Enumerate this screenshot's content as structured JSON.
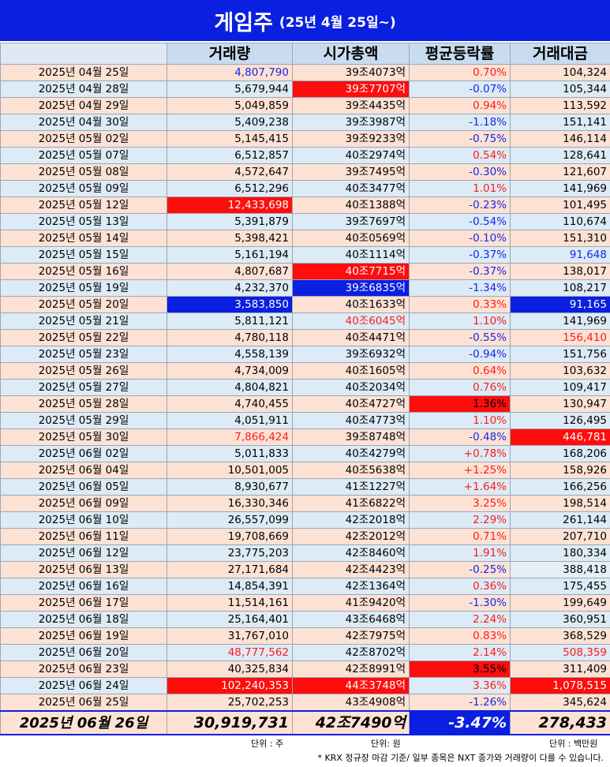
{
  "title": {
    "main": "게임주",
    "sub": "(25년 4월 25일~)"
  },
  "colors": {
    "red_text": "#ff1a1a",
    "blue_text": "#1428e6",
    "white_text": "#ffffff",
    "black_text": "#000000",
    "highlight_red": "#ff0d0d",
    "highlight_blue": "#0a1fe0"
  },
  "columns": [
    "",
    "거래량",
    "시가총액",
    "평균등락률",
    "거래대금"
  ],
  "rows": [
    {
      "date": "2025년 04월 25일",
      "volume": "4,807,790",
      "cap": "39조4073억",
      "change": "0.70%",
      "value": "104,324",
      "vc": "b",
      "cc": "",
      "chc": "r",
      "vlc": ""
    },
    {
      "date": "2025년 04월 28일",
      "volume": "5,679,944",
      "cap": "39조7707억",
      "change": "-0.07%",
      "value": "105,344",
      "vc": "",
      "cc": "Rw",
      "chc": "b",
      "vlc": ""
    },
    {
      "date": "2025년 04월 29일",
      "volume": "5,049,859",
      "cap": "39조4435억",
      "change": "0.94%",
      "value": "113,592",
      "vc": "",
      "cc": "",
      "chc": "r",
      "vlc": ""
    },
    {
      "date": "2025년 04월 30일",
      "volume": "5,409,238",
      "cap": "39조3987억",
      "change": "-1.18%",
      "value": "151,141",
      "vc": "",
      "cc": "",
      "chc": "b",
      "vlc": ""
    },
    {
      "date": "2025년 05월 02일",
      "volume": "5,145,415",
      "cap": "39조9233억",
      "change": "-0.75%",
      "value": "146,114",
      "vc": "",
      "cc": "",
      "chc": "b",
      "vlc": ""
    },
    {
      "date": "2025년 05월 07일",
      "volume": "6,512,857",
      "cap": "40조2974억",
      "change": "0.54%",
      "value": "128,641",
      "vc": "",
      "cc": "",
      "chc": "r",
      "vlc": ""
    },
    {
      "date": "2025년 05월 08일",
      "volume": "4,572,647",
      "cap": "39조7495억",
      "change": "-0.30%",
      "value": "121,607",
      "vc": "",
      "cc": "",
      "chc": "b",
      "vlc": ""
    },
    {
      "date": "2025년 05월 09일",
      "volume": "6,512,296",
      "cap": "40조3477억",
      "change": "1.01%",
      "value": "141,969",
      "vc": "",
      "cc": "",
      "chc": "r",
      "vlc": ""
    },
    {
      "date": "2025년 05월 12일",
      "volume": "12,433,698",
      "cap": "40조1388억",
      "change": "-0.23%",
      "value": "101,495",
      "vc": "Rw",
      "cc": "",
      "chc": "b",
      "vlc": ""
    },
    {
      "date": "2025년 05월 13일",
      "volume": "5,391,879",
      "cap": "39조7697억",
      "change": "-0.54%",
      "value": "110,674",
      "vc": "",
      "cc": "",
      "chc": "b",
      "vlc": ""
    },
    {
      "date": "2025년 05월 14일",
      "volume": "5,398,421",
      "cap": "40조0569억",
      "change": "-0.10%",
      "value": "151,310",
      "vc": "",
      "cc": "",
      "chc": "b",
      "vlc": ""
    },
    {
      "date": "2025년 05월 15일",
      "volume": "5,161,194",
      "cap": "40조1114억",
      "change": "-0.37%",
      "value": "91,648",
      "vc": "",
      "cc": "",
      "chc": "b",
      "vlc": "b"
    },
    {
      "date": "2025년 05월 16일",
      "volume": "4,807,687",
      "cap": "40조7715억",
      "change": "-0.37%",
      "value": "138,017",
      "vc": "",
      "cc": "Rw",
      "chc": "b",
      "vlc": ""
    },
    {
      "date": "2025년 05월 19일",
      "volume": "4,232,370",
      "cap": "39조6835억",
      "change": "-1.34%",
      "value": "108,217",
      "vc": "",
      "cc": "Bw",
      "chc": "b",
      "vlc": ""
    },
    {
      "date": "2025년 05월 20일",
      "volume": "3,583,850",
      "cap": "40조1633억",
      "change": "0.33%",
      "value": "91,165",
      "vc": "Bw",
      "cc": "",
      "chc": "r",
      "vlc": "Bw"
    },
    {
      "date": "2025년 05월 21일",
      "volume": "5,811,121",
      "cap": "40조6045억",
      "change": "1.10%",
      "value": "141,969",
      "vc": "",
      "cc": "r",
      "chc": "r",
      "vlc": ""
    },
    {
      "date": "2025년 05월 22일",
      "volume": "4,780,118",
      "cap": "40조4471억",
      "change": "-0.55%",
      "value": "156,410",
      "vc": "",
      "cc": "",
      "chc": "b",
      "vlc": "r"
    },
    {
      "date": "2025년 05월 23일",
      "volume": "4,558,139",
      "cap": "39조6932억",
      "change": "-0.94%",
      "value": "151,756",
      "vc": "",
      "cc": "",
      "chc": "b",
      "vlc": ""
    },
    {
      "date": "2025년 05월 26일",
      "volume": "4,734,009",
      "cap": "40조1605억",
      "change": "0.64%",
      "value": "103,632",
      "vc": "",
      "cc": "",
      "chc": "r",
      "vlc": ""
    },
    {
      "date": "2025년 05월 27일",
      "volume": "4,804,821",
      "cap": "40조2034억",
      "change": "0.76%",
      "value": "109,417",
      "vc": "",
      "cc": "",
      "chc": "r",
      "vlc": ""
    },
    {
      "date": "2025년 05월 28일",
      "volume": "4,740,455",
      "cap": "40조4727억",
      "change": "1.36%",
      "value": "130,947",
      "vc": "",
      "cc": "",
      "chc": "Rk",
      "vlc": ""
    },
    {
      "date": "2025년 05월 29일",
      "volume": "4,051,911",
      "cap": "40조4773억",
      "change": "1.10%",
      "value": "126,495",
      "vc": "",
      "cc": "",
      "chc": "r",
      "vlc": ""
    },
    {
      "date": "2025년 05월 30일",
      "volume": "7,866,424",
      "cap": "39조8748억",
      "change": "-0.48%",
      "value": "446,781",
      "vc": "r",
      "cc": "",
      "chc": "b",
      "vlc": "Rw"
    },
    {
      "date": "2025년 06월 02일",
      "volume": "5,011,833",
      "cap": "40조4279억",
      "change": "+0.78%",
      "value": "168,206",
      "vc": "",
      "cc": "",
      "chc": "r",
      "vlc": ""
    },
    {
      "date": "2025년 06월 04일",
      "volume": "10,501,005",
      "cap": "40조5638억",
      "change": "+1.25%",
      "value": "158,926",
      "vc": "",
      "cc": "",
      "chc": "r",
      "vlc": ""
    },
    {
      "date": "2025년 06월 05일",
      "volume": "8,930,677",
      "cap": "41조1227억",
      "change": "+1.64%",
      "value": "166,256",
      "vc": "",
      "cc": "",
      "chc": "r",
      "vlc": ""
    },
    {
      "date": "2025년 06월 09일",
      "volume": "16,330,346",
      "cap": "41조6822억",
      "change": "3.25%",
      "value": "198,514",
      "vc": "",
      "cc": "",
      "chc": "r",
      "vlc": ""
    },
    {
      "date": "2025년 06월 10일",
      "volume": "26,557,099",
      "cap": "42조2018억",
      "change": "2.29%",
      "value": "261,144",
      "vc": "",
      "cc": "",
      "chc": "r",
      "vlc": ""
    },
    {
      "date": "2025년 06월 11일",
      "volume": "19,708,669",
      "cap": "42조2012억",
      "change": "0.71%",
      "value": "207,710",
      "vc": "",
      "cc": "",
      "chc": "r",
      "vlc": ""
    },
    {
      "date": "2025년 06월 12일",
      "volume": "23,775,203",
      "cap": "42조8460억",
      "change": "1.91%",
      "value": "180,334",
      "vc": "",
      "cc": "",
      "chc": "r",
      "vlc": ""
    },
    {
      "date": "2025년 06월 13일",
      "volume": "27,171,684",
      "cap": "42조4423억",
      "change": "-0.25%",
      "value": "388,418",
      "vc": "",
      "cc": "",
      "chc": "b",
      "vlc": "P"
    },
    {
      "date": "2025년 06월 16일",
      "volume": "14,854,391",
      "cap": "42조1364억",
      "change": "0.36%",
      "value": "175,455",
      "vc": "",
      "cc": "",
      "chc": "r",
      "vlc": ""
    },
    {
      "date": "2025년 06월 17일",
      "volume": "11,514,161",
      "cap": "41조9420억",
      "change": "-1.30%",
      "value": "199,649",
      "vc": "",
      "cc": "",
      "chc": "b",
      "vlc": ""
    },
    {
      "date": "2025년 06월 18일",
      "volume": "25,164,401",
      "cap": "43조6468억",
      "change": "2.24%",
      "value": "360,951",
      "vc": "",
      "cc": "",
      "chc": "r",
      "vlc": ""
    },
    {
      "date": "2025년 06월 19일",
      "volume": "31,767,010",
      "cap": "42조7975억",
      "change": "0.83%",
      "value": "368,529",
      "vc": "",
      "cc": "",
      "chc": "r",
      "vlc": ""
    },
    {
      "date": "2025년 06월 20일",
      "volume": "48,777,562",
      "cap": "42조8702억",
      "change": "2.14%",
      "value": "508,359",
      "vc": "r",
      "cc": "",
      "chc": "r",
      "vlc": "r"
    },
    {
      "date": "2025년 06월 23일",
      "volume": "40,325,834",
      "cap": "42조8991억",
      "change": "3.55%",
      "value": "311,409",
      "vc": "",
      "cc": "",
      "chc": "Rk",
      "vlc": ""
    },
    {
      "date": "2025년 06월 24일",
      "volume": "102,240,353",
      "cap": "44조3748억",
      "change": "3.36%",
      "value": "1,078,515",
      "vc": "Rw",
      "cc": "Rw",
      "chc": "r",
      "vlc": "Rw"
    },
    {
      "date": "2025년 06월 25일",
      "volume": "25,702,253",
      "cap": "43조4908억",
      "change": "-1.26%",
      "value": "345,624",
      "vc": "",
      "cc": "",
      "chc": "b",
      "vlc": ""
    }
  ],
  "summary": {
    "date": "2025년 06월 26일",
    "volume": "30,919,731",
    "cap": "42조7490억",
    "change": "-3.47%",
    "value": "278,433"
  },
  "units": {
    "volume": "단위 : 주",
    "cap": "단위: 원",
    "value": "단위 : 백만원"
  },
  "footnote": "* KRX 정규장 마감 기준/ 일부 종목은 NXT 종가와 거래량이 다를 수 있습니다."
}
